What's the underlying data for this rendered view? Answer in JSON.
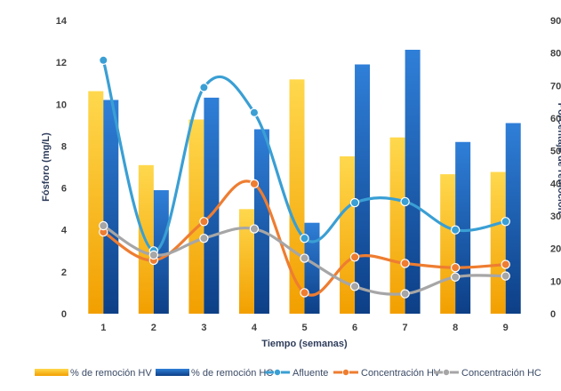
{
  "chart_data": {
    "type": "bar",
    "categories": [
      "1",
      "2",
      "3",
      "4",
      "5",
      "6",
      "7",
      "8",
      "9"
    ],
    "xlabel": "Tiempo (semanas)",
    "ylabel": "Fósforo (mg/L)",
    "y2label": "Porcentaje de remoción",
    "ylim": [
      0,
      14
    ],
    "y2lim": [
      0,
      90
    ],
    "yticks": [
      "0",
      "2",
      "4",
      "6",
      "8",
      "10",
      "12",
      "14"
    ],
    "y2ticks": [
      "0",
      "10",
      "20",
      "30",
      "40",
      "50",
      "60",
      "70",
      "80",
      "90"
    ],
    "grid": false,
    "legend_position": "bottom",
    "bar_series": [
      {
        "name": "% de remoción HV",
        "axis": "right",
        "values": [
          68.3,
          45.6,
          59.6,
          32.1,
          71.9,
          48.3,
          54.1,
          42.8,
          43.5
        ]
      },
      {
        "name": "% de remoción HC",
        "axis": "right",
        "values": [
          65.6,
          37.9,
          66.3,
          56.6,
          27.9,
          76.5,
          81.0,
          52.7,
          58.5
        ]
      }
    ],
    "line_series": [
      {
        "name": "Afluente",
        "axis": "left",
        "values": [
          12.1,
          3.0,
          10.8,
          9.6,
          3.6,
          5.3,
          5.35,
          4.0,
          4.4
        ]
      },
      {
        "name": "Concentración HV",
        "axis": "left",
        "values": [
          3.9,
          2.55,
          4.4,
          6.2,
          1.0,
          2.7,
          2.4,
          2.2,
          2.35
        ]
      },
      {
        "name": "Concentración HC",
        "axis": "left",
        "values": [
          4.2,
          2.8,
          3.6,
          4.05,
          2.65,
          1.3,
          0.95,
          1.75,
          1.8
        ]
      }
    ],
    "colors": {
      "% de remoción HV": "#f5b800",
      "% de remoción HC": "#1a5fb4",
      "Afluente": "#3a9fd4",
      "Concentración HV": "#ee7d31",
      "Concentración HC": "#a6a6a6",
      "axis_text": "#404040",
      "axis_title": "#2f3d5c"
    }
  }
}
